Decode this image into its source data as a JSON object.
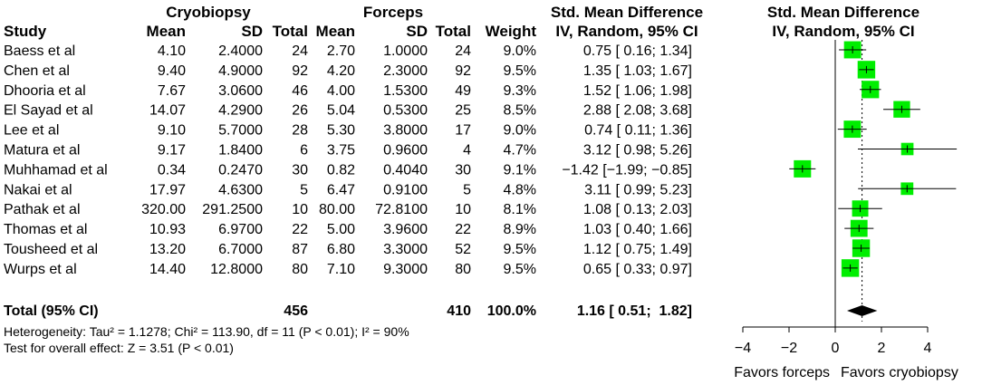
{
  "table": {
    "group1_label": "Cryobiopsy",
    "group2_label": "Forceps",
    "col_study": "Study",
    "col_mean1": "Mean",
    "col_sd1": "SD",
    "col_total1": "Total",
    "col_mean2": "Mean",
    "col_sd2": "SD",
    "col_total2": "Total",
    "col_weight": "Weight",
    "col_effect_line1": "Std. Mean Difference",
    "col_effect_line2": "IV, Random, 95% CI",
    "plot_header_line1": "Std. Mean Difference",
    "plot_header_line2": "IV, Random, 95% CI"
  },
  "studies": [
    {
      "study": "Baess et al",
      "mean1": "4.10",
      "sd1": "2.4000",
      "n1": "24",
      "mean2": "2.70",
      "sd2": "1.0000",
      "n2": "24",
      "weight": "9.0%",
      "ci_text": "0.75 [ 0.16;  1.34]"
    },
    {
      "study": "Chen et al",
      "mean1": "9.40",
      "sd1": "4.9000",
      "n1": "92",
      "mean2": "4.20",
      "sd2": "2.3000",
      "n2": "92",
      "weight": "9.5%",
      "ci_text": "1.35 [ 1.03;  1.67]"
    },
    {
      "study": "Dhooria et al",
      "mean1": "7.67",
      "sd1": "3.0600",
      "n1": "46",
      "mean2": "4.00",
      "sd2": "1.5300",
      "n2": "49",
      "weight": "9.3%",
      "ci_text": "1.52 [ 1.06;  1.98]"
    },
    {
      "study": "El Sayad et al",
      "mean1": "14.07",
      "sd1": "4.2900",
      "n1": "26",
      "mean2": "5.04",
      "sd2": "0.5300",
      "n2": "25",
      "weight": "8.5%",
      "ci_text": "2.88 [ 2.08;  3.68]"
    },
    {
      "study": "Lee et al",
      "mean1": "9.10",
      "sd1": "5.7000",
      "n1": "28",
      "mean2": "5.30",
      "sd2": "3.8000",
      "n2": "17",
      "weight": "9.0%",
      "ci_text": "0.74 [ 0.11;  1.36]"
    },
    {
      "study": "Matura et al",
      "mean1": "9.17",
      "sd1": "1.8400",
      "n1": "6",
      "mean2": "3.75",
      "sd2": "0.9600",
      "n2": "4",
      "weight": "4.7%",
      "ci_text": "3.12 [ 0.98;  5.26]"
    },
    {
      "study": "Muhhamad et al",
      "mean1": "0.34",
      "sd1": "0.2470",
      "n1": "30",
      "mean2": "0.82",
      "sd2": "0.4040",
      "n2": "30",
      "weight": "9.1%",
      "ci_text": "−1.42 [−1.99; −0.85]"
    },
    {
      "study": "Nakai et al",
      "mean1": "17.97",
      "sd1": "4.6300",
      "n1": "5",
      "mean2": "6.47",
      "sd2": "0.9100",
      "n2": "5",
      "weight": "4.8%",
      "ci_text": "3.11 [ 0.99;  5.23]"
    },
    {
      "study": "Pathak et al",
      "mean1": "320.00",
      "sd1": "291.2500",
      "n1": "10",
      "mean2": "80.00",
      "sd2": "72.8100",
      "n2": "10",
      "weight": "8.1%",
      "ci_text": "1.08 [ 0.13;  2.03]"
    },
    {
      "study": "Thomas et al",
      "mean1": "10.93",
      "sd1": "6.9700",
      "n1": "22",
      "mean2": "5.00",
      "sd2": "3.9600",
      "n2": "22",
      "weight": "8.9%",
      "ci_text": "1.03 [ 0.40;  1.66]"
    },
    {
      "study": "Tousheed et al",
      "mean1": "13.20",
      "sd1": "6.7000",
      "n1": "87",
      "mean2": "6.80",
      "sd2": "3.3000",
      "n2": "52",
      "weight": "9.5%",
      "ci_text": "1.12 [ 0.75;  1.49]"
    },
    {
      "study": "Wurps et al",
      "mean1": "14.40",
      "sd1": "12.8000",
      "n1": "80",
      "mean2": "7.10",
      "sd2": "9.3000",
      "n2": "80",
      "weight": "9.5%",
      "ci_text": "0.65 [ 0.33;  0.97]"
    }
  ],
  "total": {
    "label": "Total (95% CI)",
    "n1": "456",
    "n2": "410",
    "weight": "100.0%",
    "ci_text": "1.16 [ 0.51;  1.82]"
  },
  "footnotes": {
    "heterogeneity": "Heterogeneity: Tau² = 1.1278; Chi² = 113.90, df = 11 (P < 0.01); I² = 90%",
    "overall_effect": "Test for overall effect: Z = 3.51 (P < 0.01)"
  },
  "chart_data": {
    "type": "scatter",
    "subtype": "forest-plot",
    "measure": "Std. Mean Difference, IV, Random, 95% CI",
    "x_ticks": [
      -4,
      -2,
      0,
      2,
      4
    ],
    "x_tick_labels": [
      "−4",
      "−2",
      "0",
      "2",
      "4"
    ],
    "xlim": [
      -4,
      4
    ],
    "reference_line": 0,
    "pooled_line": 1.16,
    "favors_left": "Favors forceps",
    "favors_right": "Favors cryobiopsy",
    "marker_color": "#00ee00",
    "studies": [
      {
        "name": "Baess et al",
        "est": 0.75,
        "lo": 0.16,
        "hi": 1.34,
        "weight": 9.0
      },
      {
        "name": "Chen et al",
        "est": 1.35,
        "lo": 1.03,
        "hi": 1.67,
        "weight": 9.5
      },
      {
        "name": "Dhooria et al",
        "est": 1.52,
        "lo": 1.06,
        "hi": 1.98,
        "weight": 9.3
      },
      {
        "name": "El Sayad et al",
        "est": 2.88,
        "lo": 2.08,
        "hi": 3.68,
        "weight": 8.5
      },
      {
        "name": "Lee et al",
        "est": 0.74,
        "lo": 0.11,
        "hi": 1.36,
        "weight": 9.0
      },
      {
        "name": "Matura et al",
        "est": 3.12,
        "lo": 0.98,
        "hi": 5.26,
        "weight": 4.7
      },
      {
        "name": "Muhhamad et al",
        "est": -1.42,
        "lo": -1.99,
        "hi": -0.85,
        "weight": 9.1
      },
      {
        "name": "Nakai et al",
        "est": 3.11,
        "lo": 0.99,
        "hi": 5.23,
        "weight": 4.8
      },
      {
        "name": "Pathak et al",
        "est": 1.08,
        "lo": 0.13,
        "hi": 2.03,
        "weight": 8.1
      },
      {
        "name": "Thomas et al",
        "est": 1.03,
        "lo": 0.4,
        "hi": 1.66,
        "weight": 8.9
      },
      {
        "name": "Tousheed et al",
        "est": 1.12,
        "lo": 0.75,
        "hi": 1.49,
        "weight": 9.5
      },
      {
        "name": "Wurps et al",
        "est": 0.65,
        "lo": 0.33,
        "hi": 0.97,
        "weight": 9.5
      }
    ],
    "pooled": {
      "est": 1.16,
      "lo": 0.51,
      "hi": 1.82
    }
  }
}
